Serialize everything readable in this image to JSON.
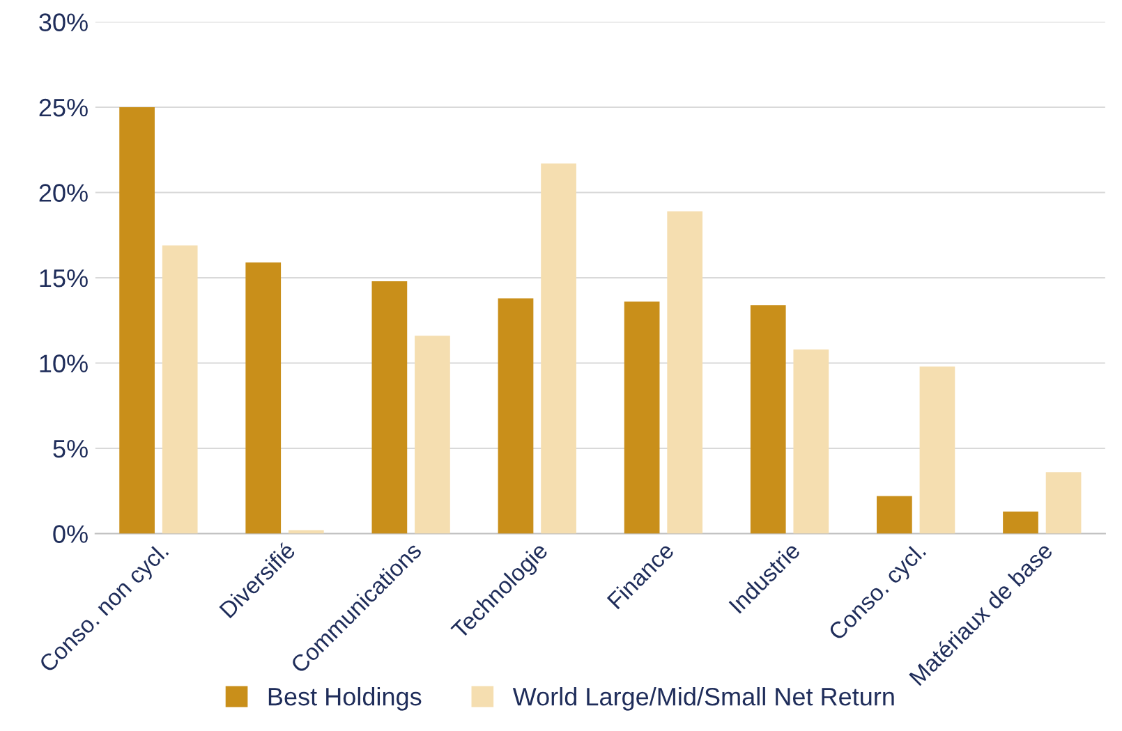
{
  "chart_data": {
    "type": "bar",
    "categories": [
      "Conso. non cycl.",
      "Diversifié",
      "Communications",
      "Technologie",
      "Finance",
      "Industrie",
      "Conso. cycl.",
      "Matériaux de base"
    ],
    "series": [
      {
        "name": "Best Holdings",
        "color": "#c98f1a",
        "values": [
          25.0,
          15.9,
          14.8,
          13.8,
          13.6,
          13.4,
          2.2,
          1.3
        ]
      },
      {
        "name": "World Large/Mid/Small Net Return",
        "color": "#f5deb0",
        "values": [
          16.9,
          0.2,
          11.6,
          21.7,
          18.9,
          10.8,
          9.8,
          3.6
        ]
      }
    ],
    "ylim": [
      0,
      30
    ],
    "yticks": [
      {
        "value": 0,
        "label": "0%"
      },
      {
        "value": 5,
        "label": "5%"
      },
      {
        "value": 10,
        "label": "10%"
      },
      {
        "value": 15,
        "label": "15%"
      },
      {
        "value": 20,
        "label": "20%"
      },
      {
        "value": 25,
        "label": "25%"
      },
      {
        "value": 30,
        "label": "30%"
      }
    ],
    "grid": "y",
    "legend": "bottom"
  }
}
